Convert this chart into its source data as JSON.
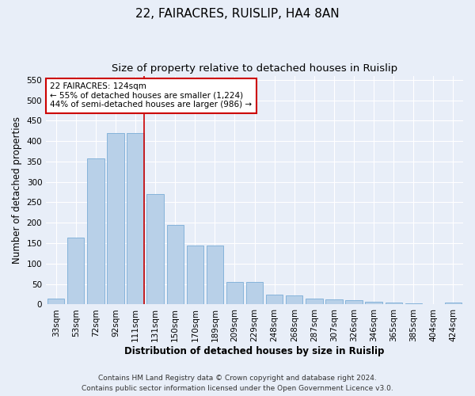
{
  "title": "22, FAIRACRES, RUISLIP, HA4 8AN",
  "subtitle": "Size of property relative to detached houses in Ruislip",
  "xlabel": "Distribution of detached houses by size in Ruislip",
  "ylabel": "Number of detached properties",
  "categories": [
    "33sqm",
    "53sqm",
    "72sqm",
    "92sqm",
    "111sqm",
    "131sqm",
    "150sqm",
    "170sqm",
    "189sqm",
    "209sqm",
    "229sqm",
    "248sqm",
    "268sqm",
    "287sqm",
    "307sqm",
    "326sqm",
    "346sqm",
    "365sqm",
    "385sqm",
    "404sqm",
    "424sqm"
  ],
  "values": [
    15,
    163,
    358,
    420,
    420,
    270,
    195,
    145,
    145,
    55,
    55,
    25,
    23,
    15,
    12,
    10,
    7,
    4,
    2,
    1,
    4
  ],
  "bar_color": "#b8d0e8",
  "bar_edge_color": "#7aacd6",
  "vline_x_index": 4,
  "vline_color": "#cc0000",
  "annotation_text": "22 FAIRACRES: 124sqm\n← 55% of detached houses are smaller (1,224)\n44% of semi-detached houses are larger (986) →",
  "annotation_box_color": "#ffffff",
  "annotation_box_edge_color": "#cc0000",
  "ylim": [
    0,
    560
  ],
  "yticks": [
    0,
    50,
    100,
    150,
    200,
    250,
    300,
    350,
    400,
    450,
    500,
    550
  ],
  "footer_line1": "Contains HM Land Registry data © Crown copyright and database right 2024.",
  "footer_line2": "Contains public sector information licensed under the Open Government Licence v3.0.",
  "background_color": "#e8eef8",
  "plot_bg_color": "#e8eef8",
  "grid_color": "#ffffff",
  "title_fontsize": 11,
  "subtitle_fontsize": 9.5,
  "axis_label_fontsize": 8.5,
  "tick_fontsize": 7.5,
  "annotation_fontsize": 7.5,
  "footer_fontsize": 6.5
}
